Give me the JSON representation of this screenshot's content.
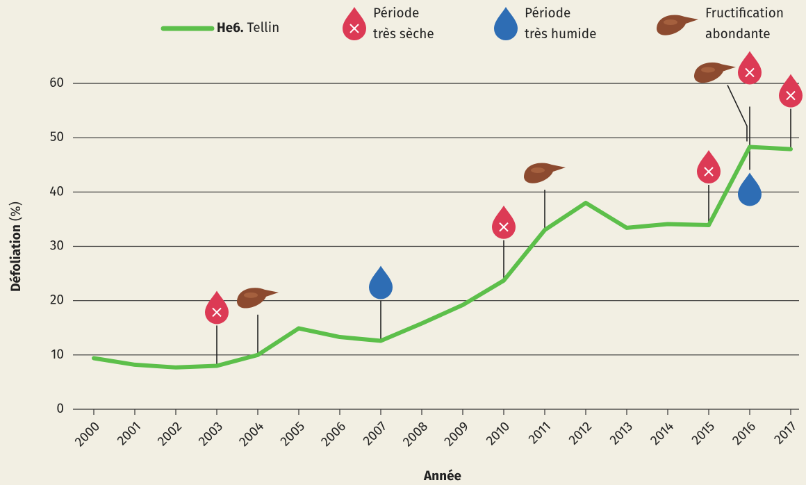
{
  "chart_data": {
    "type": "line",
    "xlabel": "Année",
    "ylabel": "Défoliation",
    "ylabel_unit": "(%)",
    "x": [
      2000,
      2001,
      2002,
      2003,
      2004,
      2005,
      2006,
      2007,
      2008,
      2009,
      2010,
      2011,
      2012,
      2013,
      2014,
      2015,
      2016,
      2017
    ],
    "series": [
      {
        "code": "He6.",
        "name": "Tellin",
        "color": "#5cbf4a",
        "values": [
          9.4,
          8.2,
          7.7,
          8.0,
          10.0,
          14.9,
          13.3,
          12.6,
          15.8,
          19.2,
          23.7,
          33.0,
          38.0,
          33.4,
          34.1,
          33.9,
          48.3,
          47.9
        ]
      }
    ],
    "markers": [
      {
        "label": [
          "Période",
          "très sèche"
        ],
        "color": "#dc3a55",
        "years": [
          2003,
          2010,
          2015,
          2016,
          2017
        ]
      },
      {
        "label": [
          "Période",
          "très humide"
        ],
        "color": "#2e6db4",
        "years": [
          2007,
          2016
        ]
      },
      {
        "label": [
          "Fructification",
          "abondante"
        ],
        "color": "#8c4a2f",
        "years": [
          2004,
          2011,
          2016
        ]
      }
    ],
    "xlim": [
      2000,
      2017
    ],
    "xticks": [
      2000,
      2001,
      2002,
      2003,
      2004,
      2005,
      2006,
      2007,
      2008,
      2009,
      2010,
      2011,
      2012,
      2013,
      2014,
      2015,
      2016,
      2017
    ],
    "ylim": [
      0,
      60
    ],
    "yticks": [
      0,
      10,
      20,
      30,
      40,
      50,
      60
    ],
    "grid": true
  }
}
